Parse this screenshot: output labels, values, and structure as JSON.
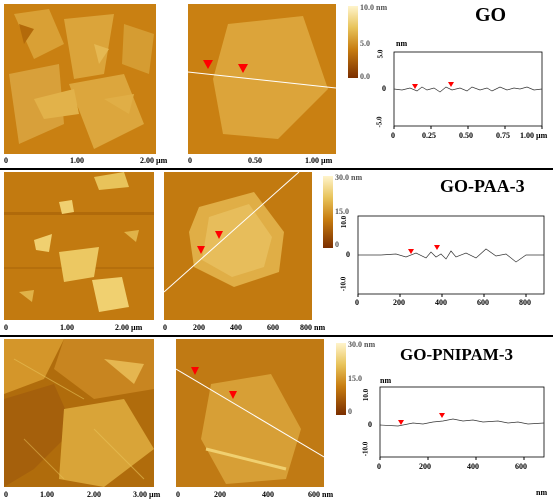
{
  "panels": [
    {
      "title": "GO",
      "scalebar": {
        "max": "10.0 nm",
        "mid": "5.0",
        "min": "0.0"
      },
      "left_axis": [
        "0",
        "1.00",
        "2.00 µm"
      ],
      "mid_axis": [
        "0",
        "0.50",
        "1.00 µm"
      ],
      "profile": {
        "unit": "nm",
        "y_ticks": [
          "5.0",
          "0",
          "-5.0"
        ],
        "x_ticks": [
          "0",
          "0.25",
          "0.50",
          "0.75",
          "1.00 µm"
        ]
      }
    },
    {
      "title": "GO-PAA-3",
      "scalebar": {
        "max": "30.0 nm",
        "mid": "15.0",
        "min": "0"
      },
      "left_axis": [
        "0",
        "1.00",
        "2.00 µm"
      ],
      "mid_axis": [
        "0",
        "200",
        "400",
        "600",
        "800 nm"
      ],
      "profile": {
        "unit": "",
        "y_ticks": [
          "10.0",
          "0",
          "-10.0"
        ],
        "x_ticks": [
          "0",
          "200",
          "400",
          "600",
          "800"
        ]
      }
    },
    {
      "title": "GO-PNIPAM-3",
      "scalebar": {
        "max": "30.0 nm",
        "mid": "15.0",
        "min": "0"
      },
      "left_axis": [
        "0",
        "1.00",
        "2.00",
        "3.00 µm"
      ],
      "mid_axis": [
        "0",
        "200",
        "400",
        "600 nm"
      ],
      "profile": {
        "unit": "nm",
        "y_ticks": [
          "10.0",
          "0",
          "-10.0"
        ],
        "x_ticks": [
          "0",
          "200",
          "400",
          "600"
        ],
        "x_unit": "nm"
      }
    }
  ],
  "colors": {
    "afm_dark": "#7a2e00",
    "afm_mid": "#c87d10",
    "afm_light": "#e8c35a",
    "marker": "#ff0000"
  }
}
